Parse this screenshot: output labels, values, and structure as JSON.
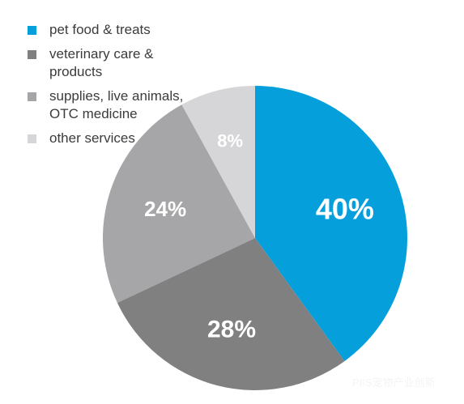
{
  "chart_data": {
    "type": "pie",
    "title": "",
    "categories": [
      "pet food & treats",
      "veterinary care & products",
      "supplies, live animals, OTC medicine",
      "other services"
    ],
    "values": [
      40,
      28,
      24,
      8
    ],
    "labels": [
      "40%",
      "28%",
      "24%",
      "8%"
    ],
    "colors": [
      "#059fdc",
      "#808080",
      "#a6a6a8",
      "#d6d6d8"
    ],
    "start_angle": "top (12 o'clock), clockwise",
    "legend_position": "top-left"
  },
  "watermark": {
    "text": "PIIS宠物产业创新",
    "icon": "wechat-icon"
  }
}
